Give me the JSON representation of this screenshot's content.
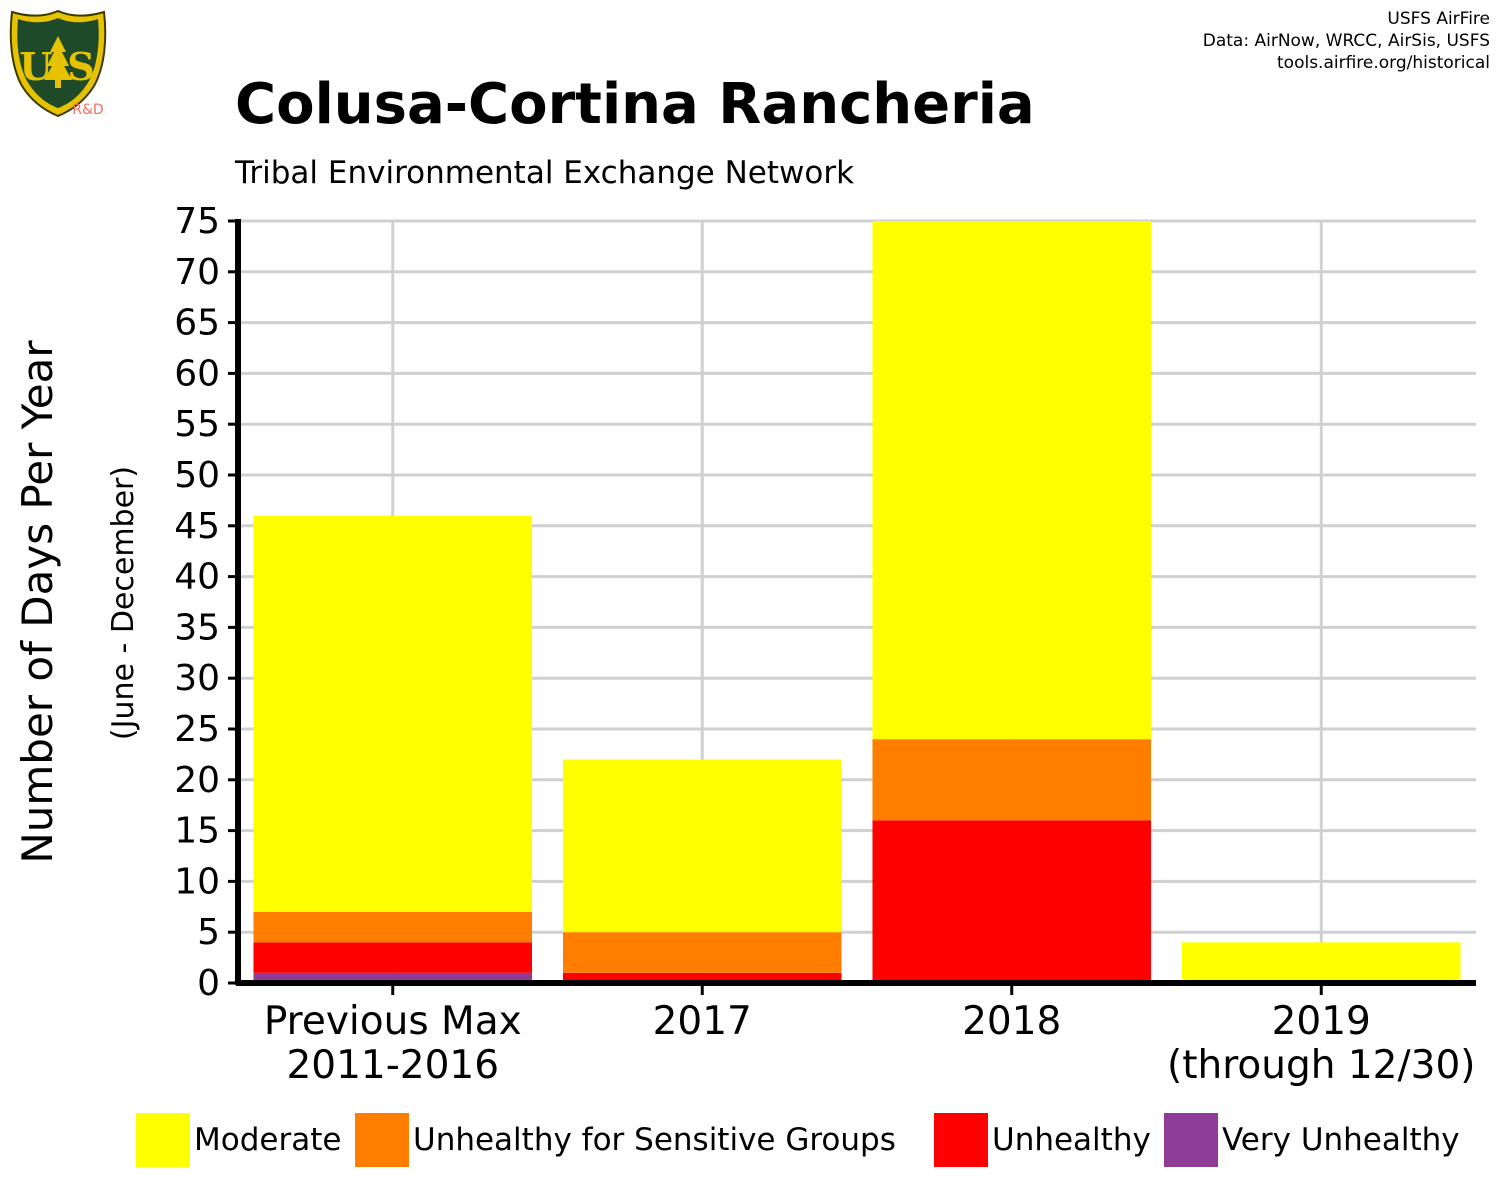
{
  "logo": {
    "icon": "us-forest-service-shield-icon",
    "lettering": "FOREST SERVICE U S DEPARTMENT OF AGRICULTURE",
    "tag": "R&D"
  },
  "credits": {
    "line1": "USFS AirFire",
    "line2": "Data: AirNow, WRCC, AirSis, USFS",
    "line3": "tools.airfire.org/historical"
  },
  "chart_data": {
    "type": "bar",
    "stacked": true,
    "title": "Colusa-Cortina Rancheria",
    "subtitle": "Tribal Environmental Exchange Network",
    "ylabel": "Number of Days Per Year",
    "ylabel_sub": "(June - December)",
    "xlabel": "",
    "ylim": [
      0,
      75
    ],
    "yticks": [
      0,
      5,
      10,
      15,
      20,
      25,
      30,
      35,
      40,
      45,
      50,
      55,
      60,
      65,
      70,
      75
    ],
    "grid": true,
    "legend_position": "bottom",
    "categories": [
      [
        "Previous Max",
        "2011-2016"
      ],
      [
        "2017"
      ],
      [
        "2018"
      ],
      [
        "2019",
        "(through 12/30)"
      ]
    ],
    "series": [
      {
        "name": "Very Unhealthy",
        "color": "#8E3C97",
        "values": [
          1,
          0,
          0,
          0
        ]
      },
      {
        "name": "Unhealthy",
        "color": "#FF0000",
        "values": [
          3,
          1,
          16,
          0
        ]
      },
      {
        "name": "Unhealthy for Sensitive Groups",
        "color": "#FF7E00",
        "values": [
          3,
          4,
          8,
          0
        ]
      },
      {
        "name": "Moderate",
        "color": "#FFFF00",
        "values": [
          39,
          17,
          51,
          4
        ]
      }
    ],
    "legend_order": [
      "Moderate",
      "Unhealthy for Sensitive Groups",
      "Unhealthy",
      "Very Unhealthy"
    ]
  }
}
